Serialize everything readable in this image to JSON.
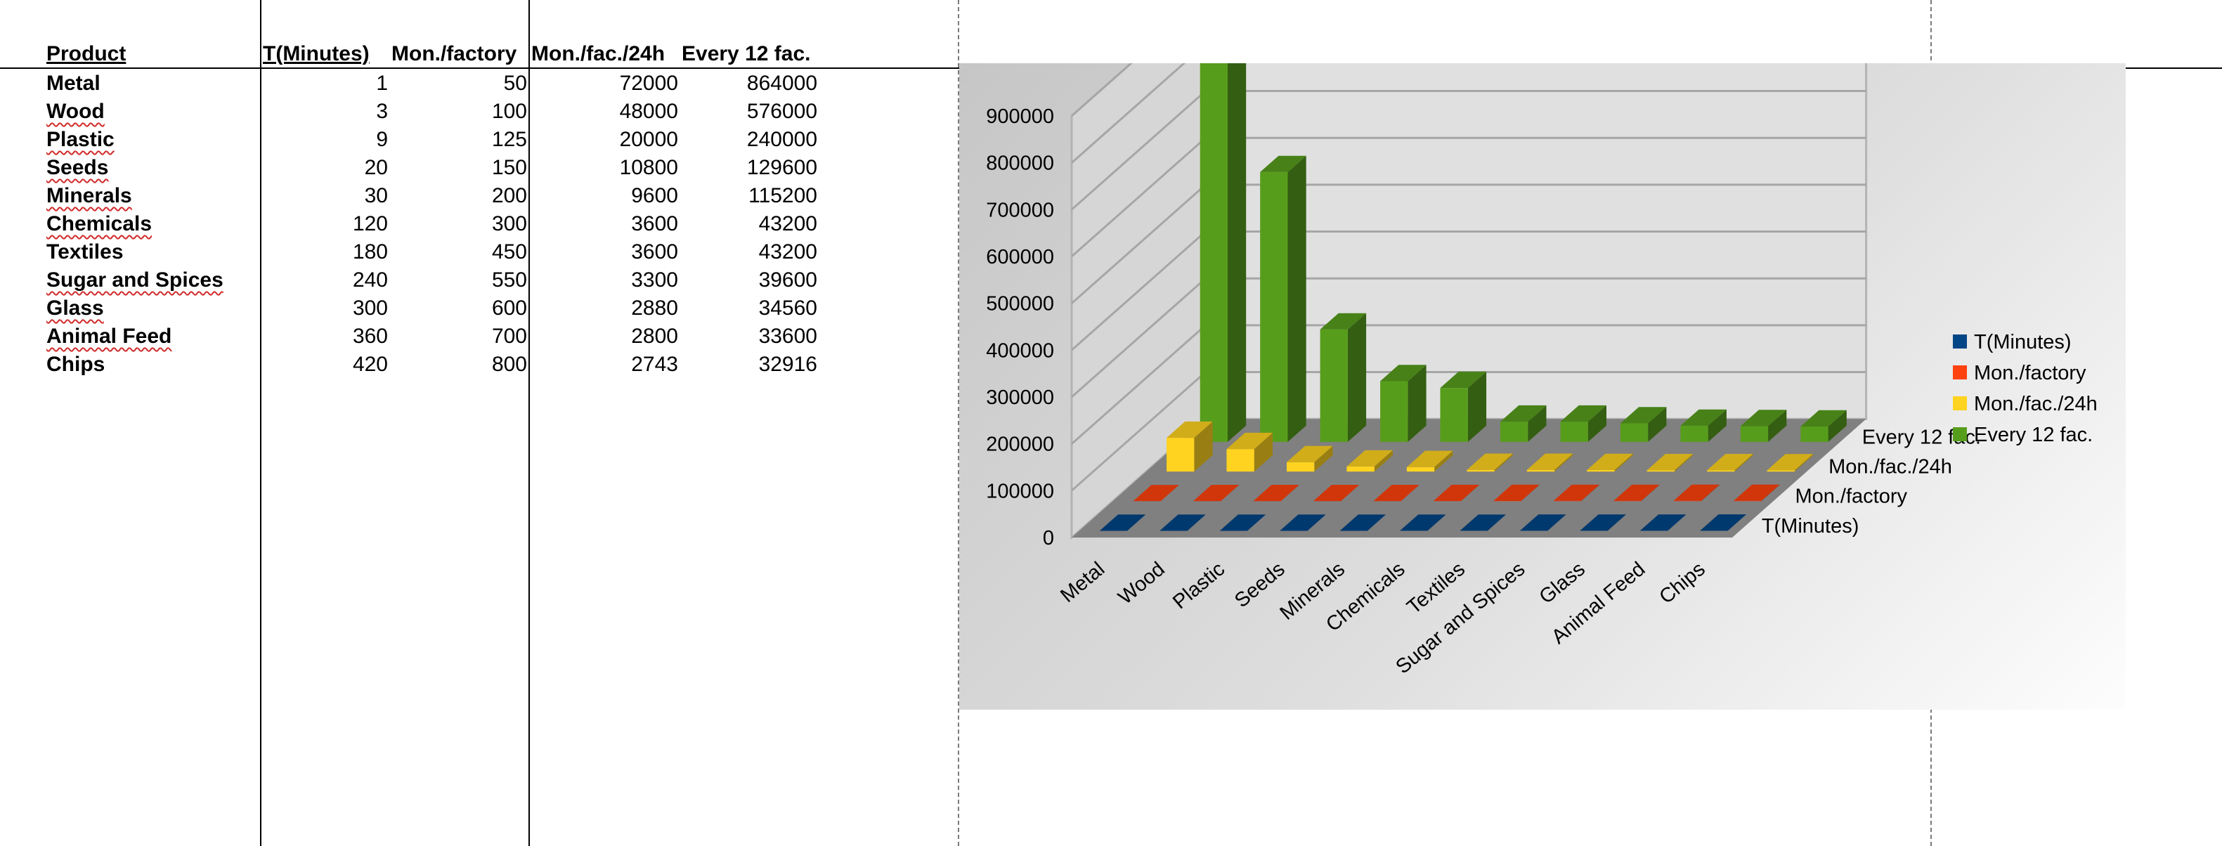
{
  "sheet": {
    "headers": [
      "Product",
      "T(Minutes)",
      "Mon./factory",
      "Mon./fac./24h",
      "Every 12 fac."
    ],
    "rows": [
      [
        "Metal",
        "1",
        "50",
        "72000",
        "864000"
      ],
      [
        "Wood",
        "3",
        "100",
        "48000",
        "576000"
      ],
      [
        "Plastic",
        "9",
        "125",
        "20000",
        "240000"
      ],
      [
        "Seeds",
        "20",
        "150",
        "10800",
        "129600"
      ],
      [
        "Minerals",
        "30",
        "200",
        "9600",
        "115200"
      ],
      [
        "Chemicals",
        "120",
        "300",
        "3600",
        "43200"
      ],
      [
        "Textiles",
        "180",
        "450",
        "3600",
        "43200"
      ],
      [
        "Sugar and Spices",
        "240",
        "550",
        "3300",
        "39600"
      ],
      [
        "Glass",
        "300",
        "600",
        "2880",
        "34560"
      ],
      [
        "Animal Feed",
        "360",
        "700",
        "2800",
        "33600"
      ],
      [
        "Chips",
        "420",
        "800",
        "2743",
        "32916"
      ]
    ]
  },
  "chart_data": {
    "type": "bar",
    "categories": [
      "Metal",
      "Wood",
      "Plastic",
      "Seeds",
      "Minerals",
      "Chemicals",
      "Textiles",
      "Sugar and Spices",
      "Glass",
      "Animal Feed",
      "Chips"
    ],
    "series": [
      {
        "name": "T(Minutes)",
        "color": "#004586",
        "values": [
          1,
          3,
          9,
          20,
          30,
          120,
          180,
          240,
          300,
          360,
          420
        ]
      },
      {
        "name": "Mon./factory",
        "color": "#ff420e",
        "values": [
          50,
          100,
          125,
          150,
          200,
          300,
          450,
          550,
          600,
          700,
          800
        ]
      },
      {
        "name": "Mon./fac./24h",
        "color": "#ffd320",
        "values": [
          72000,
          48000,
          20000,
          10800,
          9600,
          3600,
          3600,
          3300,
          2880,
          2800,
          2743
        ]
      },
      {
        "name": "Every 12 fac.",
        "color": "#579d1c",
        "values": [
          864000,
          576000,
          240000,
          129600,
          115200,
          43200,
          43200,
          39600,
          34560,
          33600,
          32916
        ]
      }
    ],
    "ylim": [
      0,
      900000
    ],
    "yticks": [
      "0",
      "100000",
      "200000",
      "300000",
      "400000",
      "500000",
      "600000",
      "700000",
      "800000",
      "900000"
    ],
    "grid": true,
    "legend_position": "right",
    "three_d": true
  }
}
